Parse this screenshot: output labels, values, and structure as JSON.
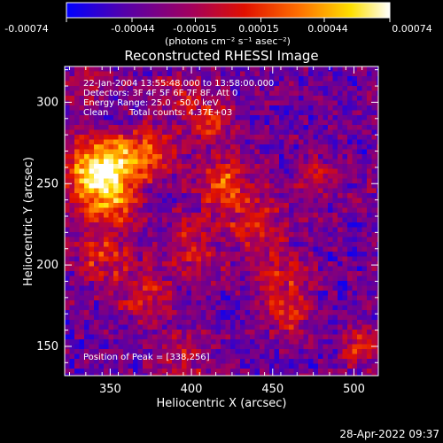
{
  "colorbar": {
    "ticks": [
      "-0.00074",
      "-0.00044",
      "-0.00015",
      "0.00015",
      "0.00044",
      "0.00074"
    ],
    "tick_values": [
      -0.00074,
      -0.00044,
      -0.00015,
      0.00015,
      0.00044,
      0.00074
    ],
    "units_label": "(photons cm⁻² s⁻¹ asec⁻²)",
    "colors": [
      "#0000ff",
      "#5500aa",
      "#a00060",
      "#e01000",
      "#ff7000",
      "#ffe000",
      "#ffffff"
    ]
  },
  "chart_data": {
    "type": "heatmap",
    "title": "Reconstructed RHESSI Image",
    "xlabel": "Heliocentric X (arcsec)",
    "ylabel": "Heliocentric Y (arcsec)",
    "xlim": [
      322,
      515
    ],
    "ylim": [
      132,
      322
    ],
    "x_ticks": [
      350,
      400,
      450,
      500
    ],
    "y_ticks": [
      150,
      200,
      250,
      300
    ],
    "x_tick_labels": [
      "350",
      "400",
      "450",
      "500"
    ],
    "y_tick_labels": [
      "150",
      "200",
      "250",
      "300"
    ],
    "peak": [
      338,
      256
    ],
    "zlim": [
      -0.00074,
      0.00074
    ],
    "annotations": {
      "line1": "22-Jan-2004 13:55:48.000 to 13:58:00.000",
      "line2": "Detectors: 3F 4F 5F 6F 7F 8F, Att 0",
      "line3": "Energy Range: 25.0 - 50.0 keV",
      "line4a": "Clean",
      "line4b": "Total counts: 4.37E+03",
      "peak_text": "Position of Peak = [338,256]"
    }
  },
  "timestamp": "28-Apr-2022 09:37"
}
